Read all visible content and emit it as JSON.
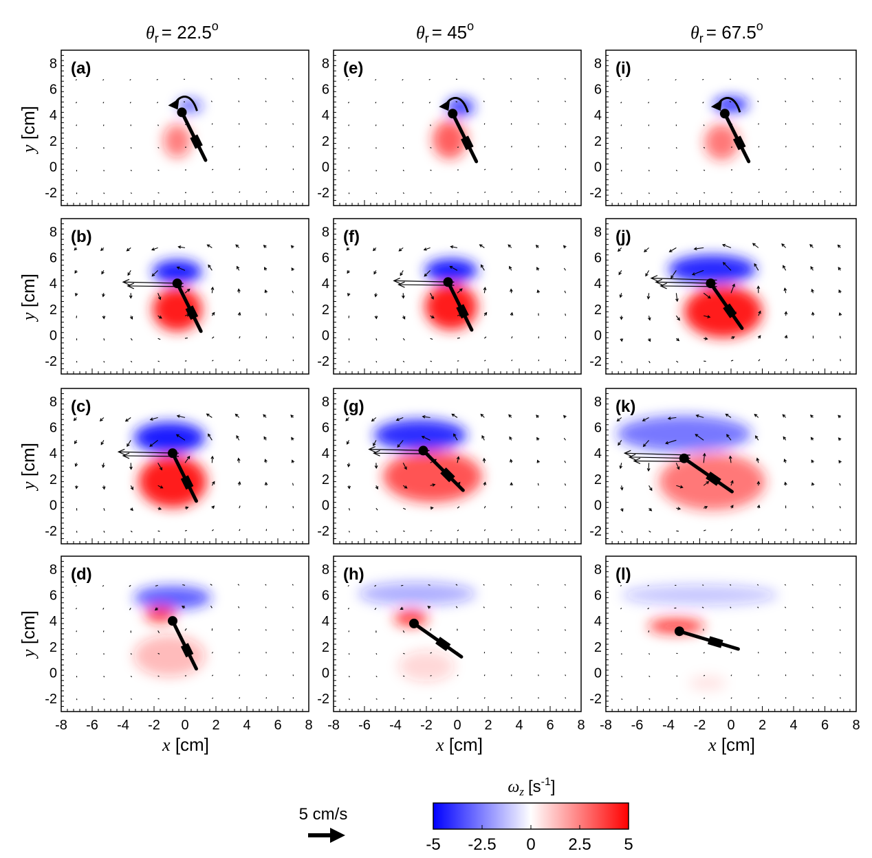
{
  "chart_data": {
    "type": "vector-field-heatmap",
    "columns": [
      {
        "label_symbol": "θ",
        "label_sub": "r",
        "label_value": "= 22.5",
        "label_sup": "o"
      },
      {
        "label_symbol": "θ",
        "label_sub": "r",
        "label_value": "= 45",
        "label_sup": "o"
      },
      {
        "label_symbol": "θ",
        "label_sub": "r",
        "label_value": "= 67.5",
        "label_sup": "o"
      }
    ],
    "xaxis": {
      "var": "x",
      "unit": "[cm]",
      "range": [
        -8,
        8
      ],
      "ticks": [
        "-8",
        "-6",
        "-4",
        "-2",
        "0",
        "2",
        "4",
        "6",
        "8"
      ]
    },
    "yaxis": {
      "var": "y",
      "unit": "[cm]",
      "range": [
        -3,
        9
      ],
      "ticks": [
        "8",
        "6",
        "4",
        "2",
        "0",
        "-2"
      ]
    },
    "panels": [
      {
        "label": "(a)",
        "col": 0,
        "row": 0,
        "angle": 22.5,
        "pivot": [
          -0.2,
          4.2
        ],
        "blue": [
          {
            "cx": 0.3,
            "cy": 4.7,
            "rx": 0.8,
            "ry": 0.5,
            "a": 0.7
          }
        ],
        "red": [
          {
            "cx": -0.5,
            "cy": 2,
            "rx": 0.9,
            "ry": 1.3,
            "a": 0.55
          }
        ],
        "arrow_scale": 0.15,
        "curl": true
      },
      {
        "label": "(b)",
        "col": 0,
        "row": 1,
        "angle": 22.5,
        "pivot": [
          -0.5,
          4.0
        ],
        "blue": [
          {
            "cx": -0.5,
            "cy": 4.9,
            "rx": 1.6,
            "ry": 0.9,
            "a": 1
          }
        ],
        "red": [
          {
            "cx": -0.5,
            "cy": 2.0,
            "rx": 1.6,
            "ry": 1.7,
            "a": 1
          }
        ],
        "arrow_scale": 1,
        "curl": false
      },
      {
        "label": "(c)",
        "col": 0,
        "row": 2,
        "angle": 22.5,
        "pivot": [
          -0.8,
          4.0
        ],
        "blue": [
          {
            "cx": -1.0,
            "cy": 5.2,
            "rx": 2.3,
            "ry": 1.2,
            "a": 1
          }
        ],
        "red": [
          {
            "cx": -0.8,
            "cy": 1.8,
            "rx": 2.2,
            "ry": 2.0,
            "a": 1
          }
        ],
        "arrow_scale": 1.2,
        "curl": false
      },
      {
        "label": "(d)",
        "col": 0,
        "row": 3,
        "angle": 22.5,
        "pivot": [
          -0.8,
          4.0
        ],
        "blue": [
          {
            "cx": -0.8,
            "cy": 5.8,
            "rx": 2.5,
            "ry": 0.9,
            "a": 0.7
          }
        ],
        "red": [
          {
            "cx": -1.6,
            "cy": 4.5,
            "rx": 1.0,
            "ry": 0.6,
            "a": 0.85
          },
          {
            "cx": -1.0,
            "cy": 1.3,
            "rx": 2.3,
            "ry": 1.6,
            "a": 0.3
          }
        ],
        "arrow_scale": 0.4,
        "curl": false
      },
      {
        "label": "(e)",
        "col": 1,
        "row": 0,
        "angle": 22.5,
        "pivot": [
          -0.3,
          4.1
        ],
        "blue": [
          {
            "cx": 0.2,
            "cy": 4.6,
            "rx": 0.9,
            "ry": 0.7,
            "a": 0.85
          }
        ],
        "red": [
          {
            "cx": -0.5,
            "cy": 2.1,
            "rx": 1.1,
            "ry": 1.5,
            "a": 0.7
          }
        ],
        "arrow_scale": 0.2,
        "curl": true
      },
      {
        "label": "(f)",
        "col": 1,
        "row": 1,
        "angle": 22.5,
        "pivot": [
          -0.6,
          4.1
        ],
        "blue": [
          {
            "cx": -0.4,
            "cy": 5.0,
            "rx": 1.7,
            "ry": 0.9,
            "a": 1
          }
        ],
        "red": [
          {
            "cx": -0.4,
            "cy": 2.2,
            "rx": 1.7,
            "ry": 1.8,
            "a": 1
          }
        ],
        "arrow_scale": 1,
        "curl": false
      },
      {
        "label": "(g)",
        "col": 1,
        "row": 2,
        "angle": 40,
        "pivot": [
          -2.2,
          4.2
        ],
        "blue": [
          {
            "cx": -2.4,
            "cy": 5.4,
            "rx": 3.0,
            "ry": 1.2,
            "a": 0.9
          }
        ],
        "red": [
          {
            "cx": -1.6,
            "cy": 2.2,
            "rx": 3.2,
            "ry": 2.0,
            "a": 0.75
          }
        ],
        "arrow_scale": 1.1,
        "curl": false
      },
      {
        "label": "(h)",
        "col": 1,
        "row": 3,
        "angle": 50,
        "pivot": [
          -2.8,
          3.8
        ],
        "blue": [
          {
            "cx": -2.6,
            "cy": 6.1,
            "rx": 3.8,
            "ry": 0.9,
            "a": 0.35
          }
        ],
        "red": [
          {
            "cx": -3.0,
            "cy": 4.2,
            "rx": 1.1,
            "ry": 0.6,
            "a": 0.85
          },
          {
            "cx": -2.0,
            "cy": 0.5,
            "rx": 1.8,
            "ry": 1.2,
            "a": 0.18
          }
        ],
        "arrow_scale": 0.35,
        "curl": false
      },
      {
        "label": "(i)",
        "col": 2,
        "row": 0,
        "angle": 22.5,
        "pivot": [
          -0.4,
          4.1
        ],
        "blue": [
          {
            "cx": 0.0,
            "cy": 4.8,
            "rx": 1.1,
            "ry": 0.6,
            "a": 0.9
          }
        ],
        "red": [
          {
            "cx": -0.6,
            "cy": 1.9,
            "rx": 1.1,
            "ry": 1.4,
            "a": 0.6
          }
        ],
        "arrow_scale": 0.2,
        "curl": true
      },
      {
        "label": "(j)",
        "col": 2,
        "row": 1,
        "angle": 30,
        "pivot": [
          -1.3,
          4.0
        ],
        "blue": [
          {
            "cx": -1.2,
            "cy": 5.1,
            "rx": 2.8,
            "ry": 1.1,
            "a": 0.95
          }
        ],
        "red": [
          {
            "cx": -0.5,
            "cy": 1.8,
            "rx": 2.5,
            "ry": 2.0,
            "a": 1
          }
        ],
        "arrow_scale": 1.4,
        "curl": false
      },
      {
        "label": "(k)",
        "col": 2,
        "row": 2,
        "angle": 50,
        "pivot": [
          -3.0,
          3.6
        ],
        "blue": [
          {
            "cx": -3.0,
            "cy": 5.5,
            "rx": 4.3,
            "ry": 1.4,
            "a": 0.6
          }
        ],
        "red": [
          {
            "cx": -1.2,
            "cy": 1.8,
            "rx": 3.4,
            "ry": 2.2,
            "a": 0.6
          }
        ],
        "arrow_scale": 1.3,
        "curl": false
      },
      {
        "label": "(l)",
        "col": 2,
        "row": 3,
        "angle": 70,
        "pivot": [
          -3.3,
          3.2
        ],
        "blue": [
          {
            "cx": -2.0,
            "cy": 6.0,
            "rx": 5.0,
            "ry": 0.8,
            "a": 0.25
          }
        ],
        "red": [
          {
            "cx": -3.5,
            "cy": 3.6,
            "rx": 1.8,
            "ry": 0.6,
            "a": 0.8
          },
          {
            "cx": -1.5,
            "cy": -0.8,
            "rx": 1.2,
            "ry": 0.6,
            "a": 0.1
          }
        ],
        "arrow_scale": 0.25,
        "curl": false
      }
    ],
    "reference_arrow": {
      "label": "5 cm/s"
    },
    "colorbar": {
      "title_symbol": "ω",
      "title_sub": "z",
      "title_unit": "[s",
      "title_sup": "-1",
      "title_close": "]",
      "range": [
        -5,
        5
      ],
      "ticks": [
        "-5",
        "-2.5",
        "0",
        "2.5",
        "5"
      ],
      "colors": {
        "neg": "#0000ff",
        "mid": "#ffffff",
        "pos": "#ff0000"
      }
    }
  }
}
